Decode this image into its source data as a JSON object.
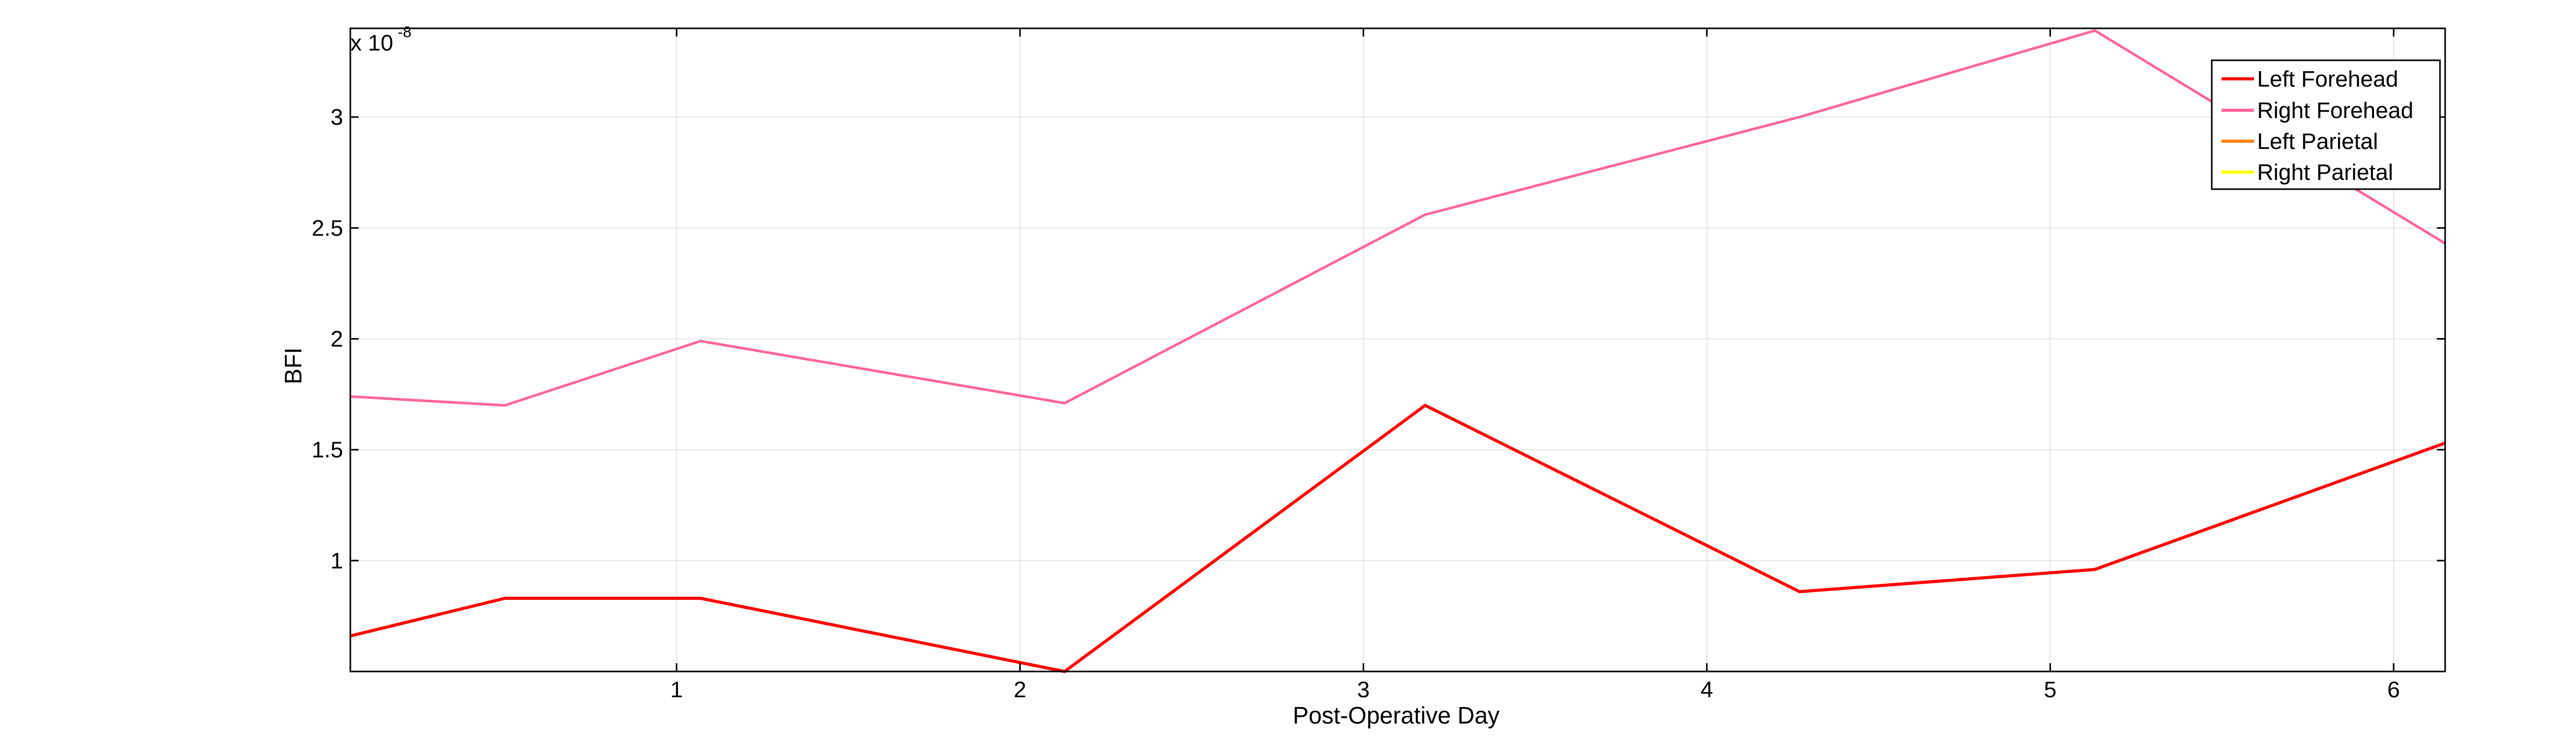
{
  "chart_data": {
    "type": "line",
    "title": "",
    "xlabel": "Post-Operative Day",
    "ylabel": "BFI",
    "y_exponent_label": "x 10",
    "y_exponent_power": "-8",
    "xlim": [
      0.05,
      6.15
    ],
    "ylim": [
      0.5,
      3.4
    ],
    "grid": true,
    "legend_position": "top-right",
    "x_ticks": [
      1,
      2,
      3,
      4,
      5,
      6
    ],
    "x_tick_labels": [
      "1",
      "2",
      "3",
      "4",
      "5",
      "6"
    ],
    "y_ticks": [
      1,
      1.5,
      2,
      2.5,
      3
    ],
    "y_tick_labels": [
      "1",
      "1.5",
      "2",
      "2.5",
      "3"
    ],
    "series": [
      {
        "name": "Left Forehead",
        "color": "#ff0000",
        "x": [
          0.05,
          0.5,
          0.78,
          1.07,
          2.13,
          3.18,
          4.27,
          5.13,
          6.15
        ],
        "y": [
          0.66,
          0.83,
          0.83,
          0.83,
          0.5,
          1.7,
          0.86,
          0.96,
          1.53
        ]
      },
      {
        "name": "Right Forehead",
        "color": "#ff6699",
        "x": [
          0.05,
          0.5,
          1.07,
          2.13,
          3.18,
          4.27,
          5.13,
          6.15
        ],
        "y": [
          1.74,
          1.7,
          1.99,
          1.71,
          2.56,
          3.0,
          3.39,
          2.43
        ]
      },
      {
        "name": "Left Parietal",
        "color": "#ff8000",
        "x": [],
        "y": []
      },
      {
        "name": "Right Parietal",
        "color": "#ffff00",
        "x": [],
        "y": []
      }
    ]
  }
}
